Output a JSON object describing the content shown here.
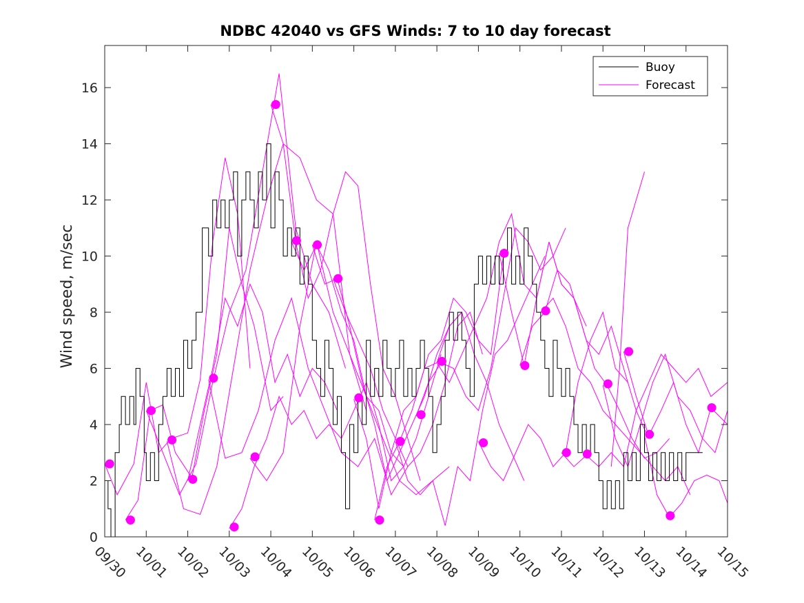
{
  "chart_data": {
    "type": "line",
    "title": "NDBC 42040 vs GFS Winds: 7 to 10 day forecast",
    "xlabel": "",
    "ylabel": "Wind speed, m/sec",
    "xlim": [
      0,
      15
    ],
    "ylim": [
      0,
      17.5
    ],
    "grid": false,
    "legend_position": "top-right",
    "x_tick_labels": [
      "09/30",
      "10/01",
      "10/02",
      "10/03",
      "10/04",
      "10/05",
      "10/06",
      "10/07",
      "10/08",
      "10/09",
      "10/10",
      "10/11",
      "10/12",
      "10/13",
      "10/14",
      "10/15"
    ],
    "y_ticks": [
      0,
      2,
      4,
      6,
      8,
      10,
      12,
      14,
      16
    ],
    "colors": {
      "buoy": "#000000",
      "forecast": "#ff00ff"
    },
    "legend": [
      {
        "label": "Buoy",
        "color": "#000000"
      },
      {
        "label": "Forecast",
        "color": "#ff00ff"
      }
    ],
    "buoy": {
      "name": "Buoy",
      "x": [
        0.0,
        0.08,
        0.15,
        0.25,
        0.35,
        0.4,
        0.5,
        0.6,
        0.7,
        0.75,
        0.85,
        0.95,
        1.0,
        1.1,
        1.2,
        1.3,
        1.4,
        1.5,
        1.6,
        1.7,
        1.8,
        1.9,
        2.0,
        2.1,
        2.2,
        2.35,
        2.5,
        2.6,
        2.7,
        2.8,
        2.9,
        3.0,
        3.1,
        3.2,
        3.3,
        3.4,
        3.5,
        3.6,
        3.7,
        3.8,
        3.9,
        4.0,
        4.1,
        4.2,
        4.3,
        4.4,
        4.5,
        4.6,
        4.7,
        4.8,
        4.9,
        5.0,
        5.1,
        5.2,
        5.3,
        5.4,
        5.5,
        5.6,
        5.7,
        5.8,
        5.9,
        6.0,
        6.1,
        6.2,
        6.3,
        6.4,
        6.5,
        6.6,
        6.7,
        6.8,
        6.9,
        7.0,
        7.1,
        7.2,
        7.3,
        7.4,
        7.5,
        7.6,
        7.7,
        7.8,
        7.9,
        8.0,
        8.1,
        8.2,
        8.3,
        8.4,
        8.5,
        8.6,
        8.7,
        8.8,
        8.9,
        9.0,
        9.1,
        9.2,
        9.3,
        9.4,
        9.5,
        9.6,
        9.7,
        9.8,
        9.9,
        10.0,
        10.1,
        10.2,
        10.3,
        10.4,
        10.5,
        10.6,
        10.7,
        10.8,
        10.9,
        11.0,
        11.1,
        11.2,
        11.3,
        11.4,
        11.5,
        11.6,
        11.7,
        11.8,
        11.9,
        12.0,
        12.1,
        12.2,
        12.3,
        12.4,
        12.5,
        12.6,
        12.7,
        12.8,
        12.9,
        13.0,
        13.1,
        13.2,
        13.3,
        13.4,
        13.5,
        13.6,
        13.7,
        13.8,
        13.9,
        14.0,
        14.1,
        14.2,
        14.3,
        14.4
      ],
      "y": [
        2,
        1,
        0,
        3,
        4,
        5,
        4,
        5,
        4,
        6,
        5,
        3,
        2,
        3,
        2,
        4,
        5,
        6,
        5,
        6,
        5,
        7,
        6,
        7,
        8,
        11,
        10,
        12,
        11,
        12,
        11,
        12,
        13,
        10,
        12,
        13,
        12,
        11,
        13,
        12,
        14,
        11,
        13,
        12,
        10,
        11,
        10,
        11,
        9,
        10,
        9,
        7,
        6,
        5,
        7,
        6,
        4,
        5,
        3,
        1,
        4,
        3,
        5,
        4,
        7,
        5,
        6,
        5,
        7,
        6,
        5,
        6,
        7,
        5,
        6,
        5,
        6,
        7,
        6,
        5,
        3,
        4,
        5,
        7,
        8,
        7,
        8,
        7,
        6,
        5,
        9,
        10,
        9,
        10,
        9,
        10,
        9,
        10,
        11,
        9,
        10,
        9,
        11,
        10,
        9,
        8,
        7,
        6,
        5,
        7,
        6,
        5,
        6,
        5,
        4,
        3,
        4,
        3,
        4,
        3,
        2,
        1,
        2,
        1,
        2,
        1,
        3,
        2,
        3,
        2,
        4,
        3,
        2,
        3,
        2,
        3,
        2,
        3,
        2,
        3,
        2,
        3,
        3,
        3,
        3,
        3
      ]
    },
    "forecast_series": [
      {
        "name": "Forecast",
        "x": [
          0.0,
          0.3,
          0.7,
          1.0,
          1.3,
          1.6,
          2.0,
          2.3,
          2.6,
          2.9,
          3.2,
          3.5
        ],
        "y": [
          2.6,
          1.5,
          2.6,
          5.5,
          3.0,
          3.5,
          3.7,
          5.6,
          10.5,
          13.5,
          11.5,
          6.0
        ]
      },
      {
        "name": "Forecast",
        "x": [
          0.5,
          0.8,
          1.1,
          1.4,
          1.7,
          2.1,
          2.4,
          2.7,
          3.0,
          3.3,
          3.6,
          4.0,
          4.3
        ],
        "y": [
          0.6,
          1.3,
          4.5,
          4.7,
          3.0,
          2.1,
          4.5,
          6.5,
          11.0,
          9.0,
          7.5,
          4.5,
          5.0
        ]
      },
      {
        "name": "Forecast",
        "x": [
          1.0,
          1.4,
          1.8,
          2.2,
          2.6,
          3.0,
          3.4,
          3.8,
          4.2,
          4.6,
          5.0,
          5.4,
          5.8
        ],
        "y": [
          4.5,
          3.0,
          1.5,
          2.6,
          5.5,
          8.0,
          9.5,
          13.0,
          16.5,
          11.0,
          9.0,
          8.0,
          6.0
        ]
      },
      {
        "name": "Forecast",
        "x": [
          1.5,
          1.9,
          2.3,
          2.7,
          3.1,
          3.5,
          3.9,
          4.3,
          4.7,
          5.1,
          5.5,
          5.9,
          6.3
        ],
        "y": [
          3.4,
          1.0,
          0.8,
          2.5,
          6.0,
          9.5,
          12.0,
          14.0,
          13.5,
          12.0,
          11.5,
          6.5,
          4.5
        ]
      },
      {
        "name": "Forecast",
        "x": [
          2.0,
          2.3,
          2.6,
          2.9,
          3.2,
          3.5,
          3.8,
          4.1,
          4.4,
          4.7,
          5.0,
          5.3,
          5.6
        ],
        "y": [
          2.0,
          4.0,
          6.0,
          8.5,
          7.5,
          9.0,
          8.0,
          5.5,
          6.5,
          5.0,
          6.0,
          5.5,
          4.5
        ]
      },
      {
        "name": "Forecast",
        "x": [
          2.5,
          2.9,
          3.3,
          3.7,
          4.1,
          4.5,
          4.9,
          5.3,
          5.7,
          6.1,
          6.5,
          6.9,
          7.3
        ],
        "y": [
          5.6,
          2.8,
          3.0,
          4.5,
          7.0,
          8.5,
          6.0,
          4.5,
          3.0,
          2.5,
          3.5,
          1.5,
          2.5
        ]
      },
      {
        "name": "Forecast",
        "x": [
          3.0,
          3.3,
          3.6,
          3.9,
          4.2,
          4.5,
          4.8,
          5.1,
          5.4,
          5.7,
          6.0,
          6.3,
          6.6,
          6.9,
          7.2
        ],
        "y": [
          0.3,
          1.0,
          2.5,
          3.5,
          5.0,
          4.0,
          4.5,
          3.5,
          4.0,
          3.5,
          4.5,
          5.5,
          4.0,
          2.0,
          2.5
        ]
      },
      {
        "name": "Forecast",
        "x": [
          3.5,
          3.9,
          4.3,
          4.7,
          5.1,
          5.5,
          5.9,
          6.3,
          6.7,
          7.1,
          7.5,
          7.9,
          8.3
        ],
        "y": [
          2.8,
          2.0,
          3.0,
          7.5,
          10.5,
          8.0,
          6.5,
          5.0,
          3.5,
          2.0,
          1.5,
          2.0,
          2.5
        ]
      },
      {
        "name": "Forecast",
        "x": [
          4.0,
          4.3,
          4.6,
          4.9,
          5.2,
          5.5,
          5.8,
          6.1,
          6.4,
          6.7,
          7.0,
          7.3,
          7.6
        ],
        "y": [
          15.4,
          14.0,
          10.5,
          8.5,
          9.5,
          11.5,
          13.0,
          12.5,
          9.0,
          6.0,
          5.0,
          3.5,
          2.0
        ]
      },
      {
        "name": "Forecast",
        "x": [
          4.5,
          4.8,
          5.1,
          5.4,
          5.7,
          6.0,
          6.3,
          6.6,
          6.9,
          7.2,
          7.5,
          7.8,
          8.1
        ],
        "y": [
          10.5,
          9.5,
          10.4,
          9.5,
          8.0,
          7.0,
          5.0,
          4.5,
          3.0,
          2.5,
          3.5,
          5.0,
          6.5
        ]
      },
      {
        "name": "Forecast",
        "x": [
          5.0,
          5.3,
          5.6,
          5.9,
          6.2,
          6.5,
          6.8,
          7.1,
          7.4,
          7.7,
          8.0,
          8.3,
          8.6
        ],
        "y": [
          10.4,
          9.0,
          9.2,
          7.5,
          5.5,
          4.0,
          2.0,
          3.0,
          4.0,
          5.0,
          6.5,
          7.5,
          8.0
        ]
      },
      {
        "name": "Forecast",
        "x": [
          5.5,
          5.8,
          6.1,
          6.4,
          6.7,
          7.0,
          7.3,
          7.6,
          7.9,
          8.2,
          8.5,
          8.8,
          9.1
        ],
        "y": [
          9.2,
          8.0,
          7.0,
          6.0,
          4.5,
          3.5,
          2.5,
          3.0,
          4.0,
          5.5,
          7.5,
          8.0,
          6.5
        ]
      },
      {
        "name": "Forecast",
        "x": [
          6.0,
          6.3,
          6.6,
          6.9,
          7.2,
          7.5,
          7.8,
          8.1,
          8.4,
          8.7,
          9.0,
          9.3,
          9.6
        ],
        "y": [
          4.9,
          3.5,
          1.0,
          3.0,
          4.5,
          5.0,
          6.5,
          7.0,
          8.5,
          8.0,
          7.0,
          6.5,
          10.0
        ]
      },
      {
        "name": "Forecast",
        "x": [
          6.5,
          6.8,
          7.1,
          7.4,
          7.7,
          8.0,
          8.3,
          8.6,
          8.9,
          9.2,
          9.5,
          9.8,
          10.1
        ],
        "y": [
          0.6,
          2.5,
          3.4,
          4.5,
          6.0,
          6.2,
          7.5,
          8.0,
          6.5,
          5.5,
          4.0,
          3.0,
          2.0
        ]
      },
      {
        "name": "Forecast",
        "x": [
          7.0,
          7.3,
          7.6,
          7.9,
          8.2,
          8.5,
          8.8,
          9.1,
          9.4,
          9.7,
          10.0,
          10.3,
          10.6
        ],
        "y": [
          3.4,
          2.0,
          1.5,
          2.0,
          0.4,
          2.5,
          2.0,
          4.5,
          6.5,
          7.0,
          8.0,
          9.0,
          10.0
        ]
      },
      {
        "name": "Forecast",
        "x": [
          7.5,
          7.8,
          8.1,
          8.4,
          8.7,
          9.0,
          9.3,
          9.6,
          9.9,
          10.2,
          10.5,
          10.8,
          11.1
        ],
        "y": [
          4.3,
          5.5,
          6.2,
          6.0,
          5.0,
          4.5,
          6.0,
          8.5,
          11.0,
          10.5,
          9.5,
          10.0,
          11.0
        ]
      },
      {
        "name": "Forecast",
        "x": [
          8.0,
          8.3,
          8.6,
          8.9,
          9.2,
          9.5,
          9.8,
          10.1,
          10.4,
          10.7,
          11.0,
          11.3,
          11.6
        ],
        "y": [
          6.2,
          5.5,
          6.5,
          7.5,
          8.5,
          10.5,
          11.5,
          9.0,
          8.5,
          10.5,
          9.0,
          8.5,
          7.5
        ]
      },
      {
        "name": "Forecast",
        "x": [
          9.0,
          9.3,
          9.6,
          9.9,
          10.2,
          10.5,
          10.8,
          11.1,
          11.4,
          11.7,
          12.0,
          12.3,
          12.6
        ],
        "y": [
          3.4,
          2.5,
          2.0,
          3.0,
          4.0,
          3.5,
          2.5,
          3.0,
          5.5,
          7.0,
          8.0,
          6.0,
          5.5
        ]
      },
      {
        "name": "Forecast",
        "x": [
          9.5,
          9.8,
          10.1,
          10.4,
          10.7,
          11.0,
          11.3,
          11.6,
          11.9,
          12.2,
          12.5,
          12.8,
          13.1
        ],
        "y": [
          10.1,
          8.0,
          6.1,
          8.5,
          10.5,
          9.0,
          8.5,
          7.0,
          6.5,
          7.5,
          6.0,
          4.5,
          3.5
        ]
      },
      {
        "name": "Forecast",
        "x": [
          10.0,
          10.3,
          10.6,
          10.9,
          11.2,
          11.5,
          11.8,
          12.1,
          12.4,
          12.7,
          13.0,
          13.3,
          13.6
        ],
        "y": [
          6.1,
          7.5,
          8.0,
          9.5,
          9.0,
          7.5,
          6.0,
          5.4,
          4.5,
          3.5,
          2.8,
          3.0,
          3.5
        ]
      },
      {
        "name": "Forecast",
        "x": [
          10.5,
          10.8,
          11.1,
          11.4,
          11.7,
          12.0,
          12.3,
          12.6,
          12.9,
          13.2,
          13.5,
          13.8,
          14.1
        ],
        "y": [
          8.0,
          8.5,
          7.5,
          6.0,
          5.5,
          4.5,
          4.0,
          3.5,
          3.0,
          2.5,
          2.0,
          2.5,
          1.5
        ]
      },
      {
        "name": "Forecast",
        "x": [
          11.0,
          11.3,
          11.6,
          11.9,
          12.2,
          12.5,
          12.8,
          13.1,
          13.4,
          13.7,
          14.0,
          14.3,
          14.6,
          15.0
        ],
        "y": [
          3.0,
          2.5,
          2.9,
          2.5,
          3.0,
          2.5,
          4.5,
          5.5,
          6.5,
          6.0,
          5.5,
          6.0,
          5.0,
          5.5
        ]
      },
      {
        "name": "Forecast",
        "x": [
          12.0,
          12.3,
          12.6,
          12.9,
          13.2,
          13.5,
          13.8,
          14.1,
          14.4,
          14.7,
          15.0
        ],
        "y": [
          5.4,
          3.5,
          2.5,
          4.0,
          5.5,
          6.5,
          5.0,
          4.5,
          3.5,
          3.0,
          4.5
        ]
      },
      {
        "name": "Forecast",
        "x": [
          12.5,
          12.8,
          13.1,
          13.4,
          13.7,
          14.0,
          14.3,
          14.6,
          15.0
        ],
        "y": [
          6.6,
          5.0,
          3.6,
          4.5,
          5.5,
          4.0,
          3.0,
          4.6,
          4.0
        ]
      },
      {
        "name": "Forecast",
        "x": [
          13.0,
          13.3,
          13.6,
          13.9,
          14.2,
          14.5,
          14.8,
          15.0
        ],
        "y": [
          3.6,
          1.5,
          0.7,
          1.2,
          2.0,
          2.2,
          2.0,
          1.2
        ]
      },
      {
        "name": "Forecast",
        "x": [
          12.2,
          12.4,
          12.6,
          12.8,
          13.0
        ],
        "y": [
          2.5,
          6.0,
          11.0,
          12.0,
          13.0
        ]
      }
    ],
    "forecast_markers": [
      {
        "x": 0.12,
        "y": 2.6
      },
      {
        "x": 0.62,
        "y": 0.6
      },
      {
        "x": 1.12,
        "y": 4.5
      },
      {
        "x": 1.62,
        "y": 3.45
      },
      {
        "x": 2.12,
        "y": 2.05
      },
      {
        "x": 2.62,
        "y": 5.65
      },
      {
        "x": 3.12,
        "y": 0.35
      },
      {
        "x": 3.62,
        "y": 2.85
      },
      {
        "x": 4.12,
        "y": 15.4
      },
      {
        "x": 4.62,
        "y": 10.55
      },
      {
        "x": 5.12,
        "y": 10.4
      },
      {
        "x": 5.62,
        "y": 9.2
      },
      {
        "x": 6.12,
        "y": 4.95
      },
      {
        "x": 6.62,
        "y": 0.6
      },
      {
        "x": 7.12,
        "y": 3.4
      },
      {
        "x": 7.62,
        "y": 4.35
      },
      {
        "x": 8.12,
        "y": 6.25
      },
      {
        "x": 9.12,
        "y": 3.35
      },
      {
        "x": 9.62,
        "y": 10.1
      },
      {
        "x": 10.12,
        "y": 6.1
      },
      {
        "x": 10.62,
        "y": 8.05
      },
      {
        "x": 11.12,
        "y": 3.0
      },
      {
        "x": 11.62,
        "y": 2.95
      },
      {
        "x": 12.12,
        "y": 5.45
      },
      {
        "x": 12.62,
        "y": 6.6
      },
      {
        "x": 13.12,
        "y": 3.65
      },
      {
        "x": 13.62,
        "y": 0.75
      },
      {
        "x": 14.62,
        "y": 4.6
      }
    ]
  }
}
